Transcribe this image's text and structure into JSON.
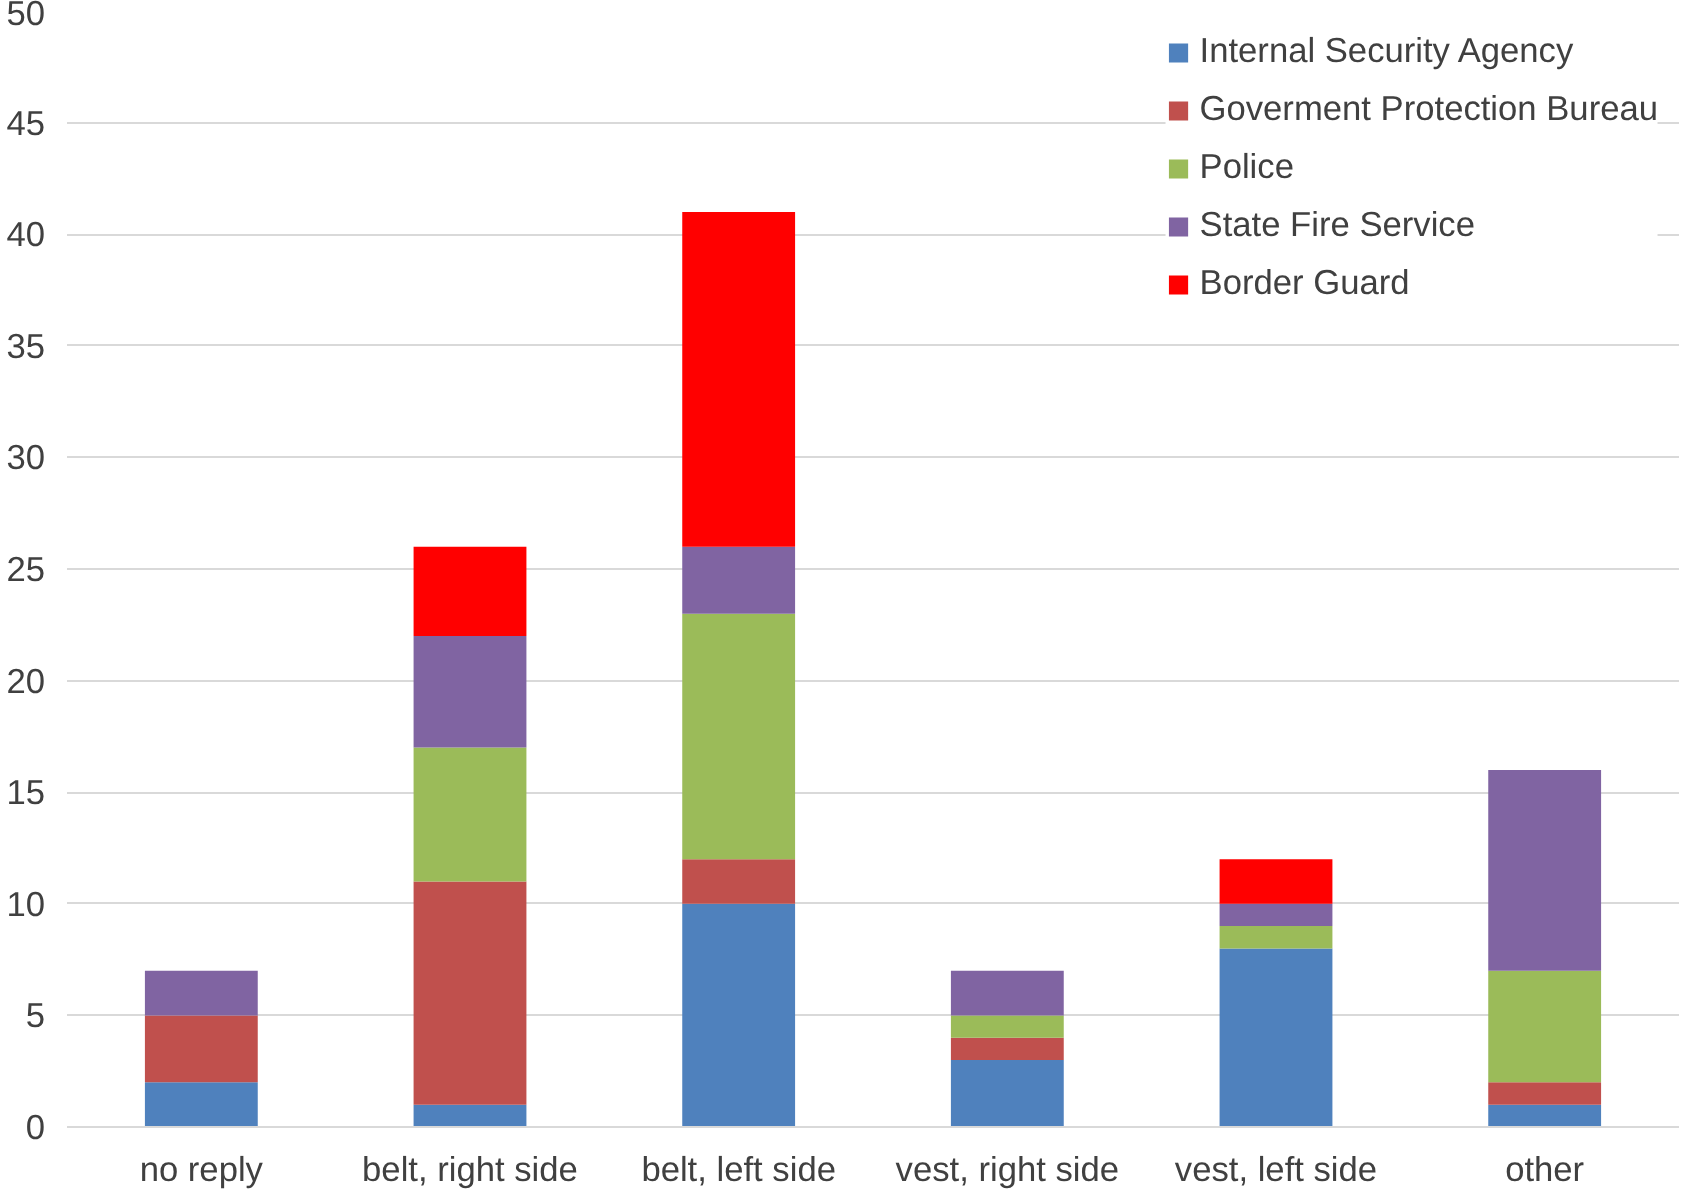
{
  "chart_data": {
    "type": "bar",
    "stacked": true,
    "categories": [
      "no reply",
      "belt, right side",
      "belt, left side",
      "vest, right side",
      "vest, left side",
      "other"
    ],
    "series": [
      {
        "name": "Internal Security Agency",
        "color": "#4f81bd",
        "values": [
          2,
          1,
          10,
          3,
          8,
          1
        ]
      },
      {
        "name": "Goverment Protection Bureau",
        "color": "#c0504d",
        "values": [
          3,
          10,
          2,
          1,
          0,
          1
        ]
      },
      {
        "name": "Police",
        "color": "#9bbb59",
        "values": [
          0,
          6,
          11,
          1,
          1,
          5
        ]
      },
      {
        "name": "State Fire Service",
        "color": "#8064a2",
        "values": [
          2,
          5,
          3,
          2,
          1,
          9
        ]
      },
      {
        "name": "Border Guard",
        "color": "#ff0000",
        "values": [
          0,
          4,
          15,
          0,
          2,
          0
        ]
      }
    ],
    "ylim": [
      0,
      50
    ],
    "yticks": [
      0,
      5,
      10,
      15,
      20,
      25,
      30,
      35,
      40,
      45,
      50
    ],
    "grid": "y",
    "legend": "top right"
  }
}
